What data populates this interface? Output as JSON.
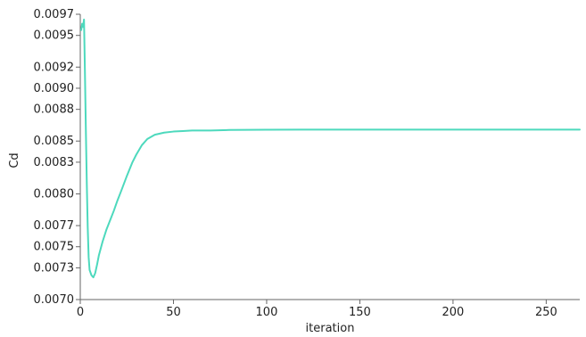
{
  "chart_data": {
    "type": "line",
    "title": "",
    "xlabel": "iteration",
    "ylabel": "Cd",
    "xlim": [
      0,
      268
    ],
    "ylim": [
      0.007,
      0.0097
    ],
    "x_ticks": [
      0,
      50,
      100,
      150,
      200,
      250
    ],
    "x_tick_labels": [
      "0",
      "50",
      "100",
      "150",
      "200",
      "250"
    ],
    "y_ticks": [
      0.007,
      0.0073,
      0.0075,
      0.0077,
      0.008,
      0.0083,
      0.0085,
      0.0088,
      0.009,
      0.0092,
      0.0095,
      0.0097
    ],
    "y_tick_labels": [
      "0.0070",
      "0.0073",
      "0.0075",
      "0.0077",
      "0.0080",
      "0.0083",
      "0.0085",
      "0.0088",
      "0.0090",
      "0.0092",
      "0.0095",
      "0.0097"
    ],
    "grid": false,
    "legend": "none",
    "series": [
      {
        "color": "#4dd9bd",
        "x": [
          0.5,
          1,
          1.5,
          2,
          2.5,
          3,
          3.5,
          4,
          4.5,
          5,
          6,
          7,
          8,
          9,
          10,
          12,
          14,
          16,
          18,
          20,
          22,
          25,
          28,
          30,
          33,
          36,
          40,
          45,
          50,
          55,
          60,
          70,
          80,
          100,
          120,
          150,
          200,
          250,
          268
        ],
        "y": [
          0.00955,
          0.00961,
          0.00958,
          0.00965,
          0.00915,
          0.0086,
          0.0081,
          0.00768,
          0.0074,
          0.00728,
          0.00723,
          0.00721,
          0.00725,
          0.00733,
          0.00742,
          0.00755,
          0.00766,
          0.00775,
          0.00784,
          0.00794,
          0.00803,
          0.00817,
          0.0083,
          0.00837,
          0.00846,
          0.00852,
          0.00856,
          0.00858,
          0.00859,
          0.008595,
          0.0086,
          0.0086,
          0.008605,
          0.008607,
          0.008608,
          0.008608,
          0.008608,
          0.008608,
          0.008608
        ]
      }
    ]
  }
}
